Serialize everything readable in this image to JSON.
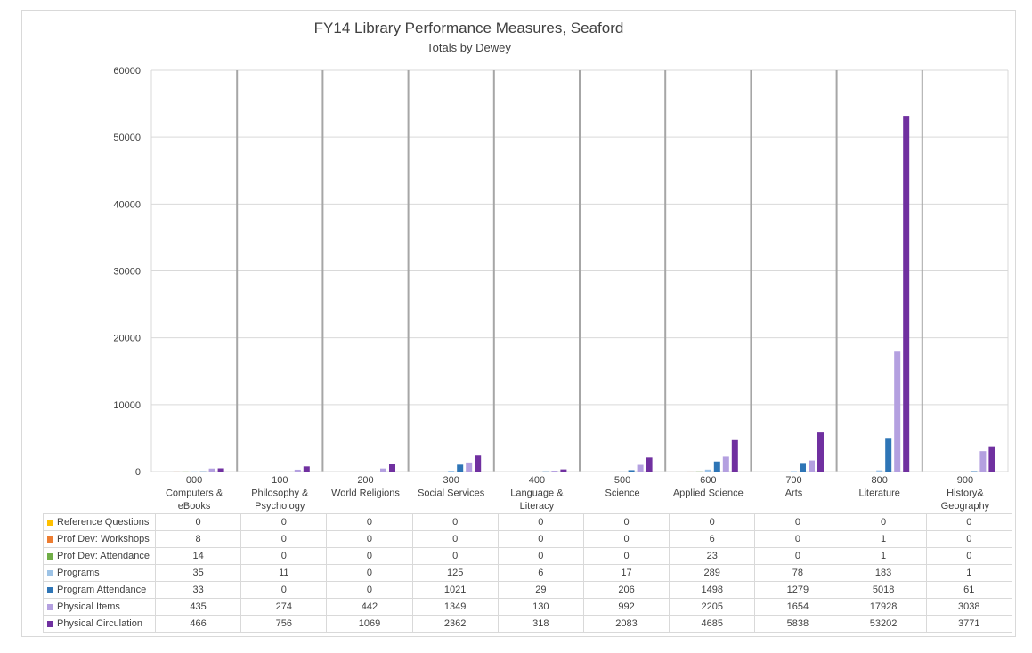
{
  "chart_data": {
    "type": "bar",
    "title": "FY14 Library Performance Measures, Seaford",
    "subtitle": "Totals by Dewey",
    "ylim": [
      0,
      60000
    ],
    "yticks": [
      0,
      10000,
      20000,
      30000,
      40000,
      50000,
      60000
    ],
    "grid": true,
    "legend": "table-bottom",
    "categories": [
      [
        "000",
        "Computers &",
        "eBooks"
      ],
      [
        "100",
        "Philosophy &",
        "Psychology"
      ],
      [
        "200",
        "World Religions"
      ],
      [
        "300",
        "Social Services"
      ],
      [
        "400",
        "Language &",
        "Literacy"
      ],
      [
        "500",
        "Science"
      ],
      [
        "600",
        "Applied Science"
      ],
      [
        "700",
        "Arts"
      ],
      [
        "800",
        "Literature"
      ],
      [
        "900",
        "History&",
        "Geography"
      ]
    ],
    "series": [
      {
        "name": "Reference Questions",
        "color": "#ffc000",
        "values": [
          0,
          0,
          0,
          0,
          0,
          0,
          0,
          0,
          0,
          0
        ]
      },
      {
        "name": "Prof Dev: Workshops",
        "color": "#ed7d31",
        "values": [
          8,
          0,
          0,
          0,
          0,
          0,
          6,
          0,
          1,
          0
        ]
      },
      {
        "name": "Prof Dev: Attendance",
        "color": "#70ad47",
        "values": [
          14,
          0,
          0,
          0,
          0,
          0,
          23,
          0,
          1,
          0
        ]
      },
      {
        "name": "Programs",
        "color": "#9dc3e6",
        "values": [
          35,
          11,
          0,
          125,
          6,
          17,
          289,
          78,
          183,
          1
        ]
      },
      {
        "name": "Program Attendance",
        "color": "#2e75b6",
        "values": [
          33,
          0,
          0,
          1021,
          29,
          206,
          1498,
          1279,
          5018,
          61
        ]
      },
      {
        "name": "Physical Items",
        "color": "#b4a0e0",
        "values": [
          435,
          274,
          442,
          1349,
          130,
          992,
          2205,
          1654,
          17928,
          3038
        ]
      },
      {
        "name": "Physical Circulation",
        "color": "#7030a0",
        "values": [
          466,
          756,
          1069,
          2362,
          318,
          2083,
          4685,
          5838,
          53202,
          3771
        ]
      }
    ]
  }
}
